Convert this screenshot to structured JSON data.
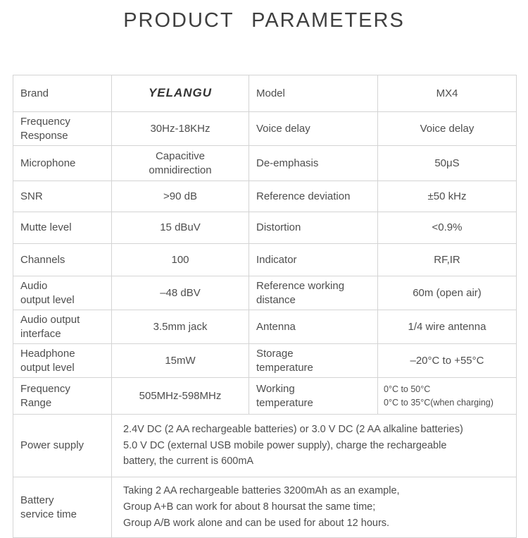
{
  "title": "PRODUCT  PARAMETERS",
  "colors": {
    "background": "#ffffff",
    "border": "#d4d4d4",
    "text": "#4e4e4e",
    "title": "#3f3f3f"
  },
  "rows": [
    {
      "label1": "Brand",
      "value1": "YELANGU",
      "label2": "Model",
      "value2": "MX4"
    },
    {
      "label1": "Frequency\nResponse",
      "value1": "30Hz-18KHz",
      "label2": "Voice delay",
      "value2": "Voice delay"
    },
    {
      "label1": "Microphone",
      "value1": "Capacitive\nomnidirection",
      "label2": "De-emphasis",
      "value2": "50μS"
    },
    {
      "label1": "SNR",
      "value1": ">90 dB",
      "label2": "Reference deviation",
      "value2": "±50 kHz"
    },
    {
      "label1": "Mutte level",
      "value1": "15 dBuV",
      "label2": "Distortion",
      "value2": "<0.9%"
    },
    {
      "label1": "Channels",
      "value1": "100",
      "label2": "Indicator",
      "value2": "RF,IR"
    },
    {
      "label1": "Audio\noutput level",
      "value1": "–48 dBV",
      "label2": "Reference working\ndistance",
      "value2": "60m (open air)"
    },
    {
      "label1": "Audio output\ninterface",
      "value1": "3.5mm jack",
      "label2": "Antenna",
      "value2": "1/4 wire antenna"
    },
    {
      "label1": "Headphone\noutput level",
      "value1": "15mW",
      "label2": "Storage\ntemperature",
      "value2": "–20°C to +55°C"
    },
    {
      "label1": "Frequency\nRange",
      "value1": "505MHz-598MHz",
      "label2": "Working\ntemperature",
      "value2": "0°C to 50°C\n0°C to 35°C(when charging)"
    }
  ],
  "merged": [
    {
      "label": "Power supply",
      "value": "2.4V DC (2 AA rechargeable batteries) or 3.0 V DC (2 AA alkaline batteries)\n5.0 V DC (external USB mobile power supply), charge the rechargeable\nbattery, the current is 600mA"
    },
    {
      "label": "Battery\nservice time",
      "value": "Taking 2 AA rechargeable batteries 3200mAh as an example,\nGroup A+B can work for about 8 hoursat the same time;\nGroup A/B work alone and can be used for about 12 hours."
    }
  ]
}
